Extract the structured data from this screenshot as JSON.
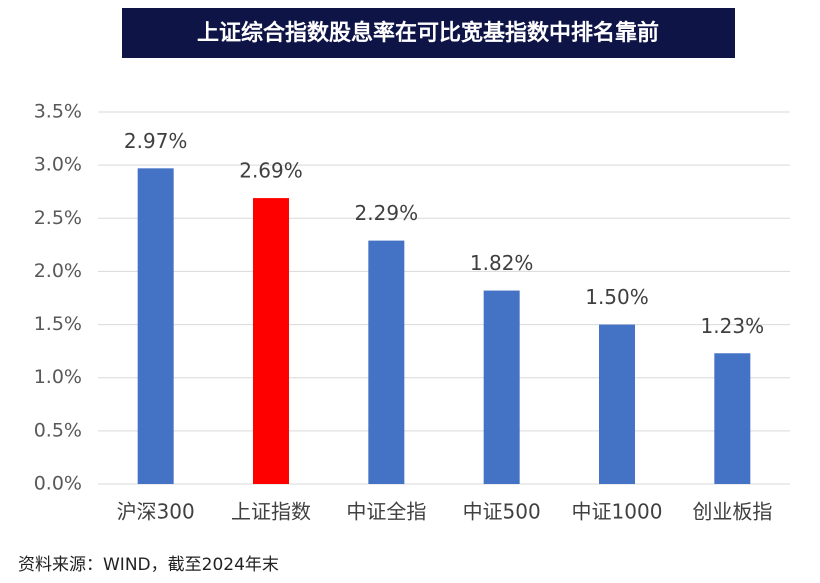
{
  "chart_data": {
    "type": "bar",
    "title": "上证综合指数股息率在可比宽基指数中排名靠前",
    "categories": [
      "沪深300",
      "上证指数",
      "中证全指",
      "中证500",
      "中证1000",
      "创业板指"
    ],
    "values": [
      2.97,
      2.69,
      2.29,
      1.82,
      1.5,
      1.23
    ],
    "value_labels": [
      "2.97%",
      "2.69%",
      "2.29%",
      "1.82%",
      "1.50%",
      "1.23%"
    ],
    "colors": [
      "#4472c4",
      "#ff0000",
      "#4472c4",
      "#4472c4",
      "#4472c4",
      "#4472c4"
    ],
    "ylim": [
      0,
      3.5
    ],
    "yticks": [
      {
        "value": 0,
        "label": "0.0%"
      },
      {
        "value": 0.5,
        "label": "0.5%"
      },
      {
        "value": 1,
        "label": "1.0%"
      },
      {
        "value": 1.5,
        "label": "1.5%"
      },
      {
        "value": 2,
        "label": "2.0%"
      },
      {
        "value": 2.5,
        "label": "2.5%"
      },
      {
        "value": 3,
        "label": "3.0%"
      },
      {
        "value": 3.5,
        "label": "3.5%"
      }
    ],
    "grid": true,
    "source": "资料来源：WIND，截至2024年末"
  }
}
